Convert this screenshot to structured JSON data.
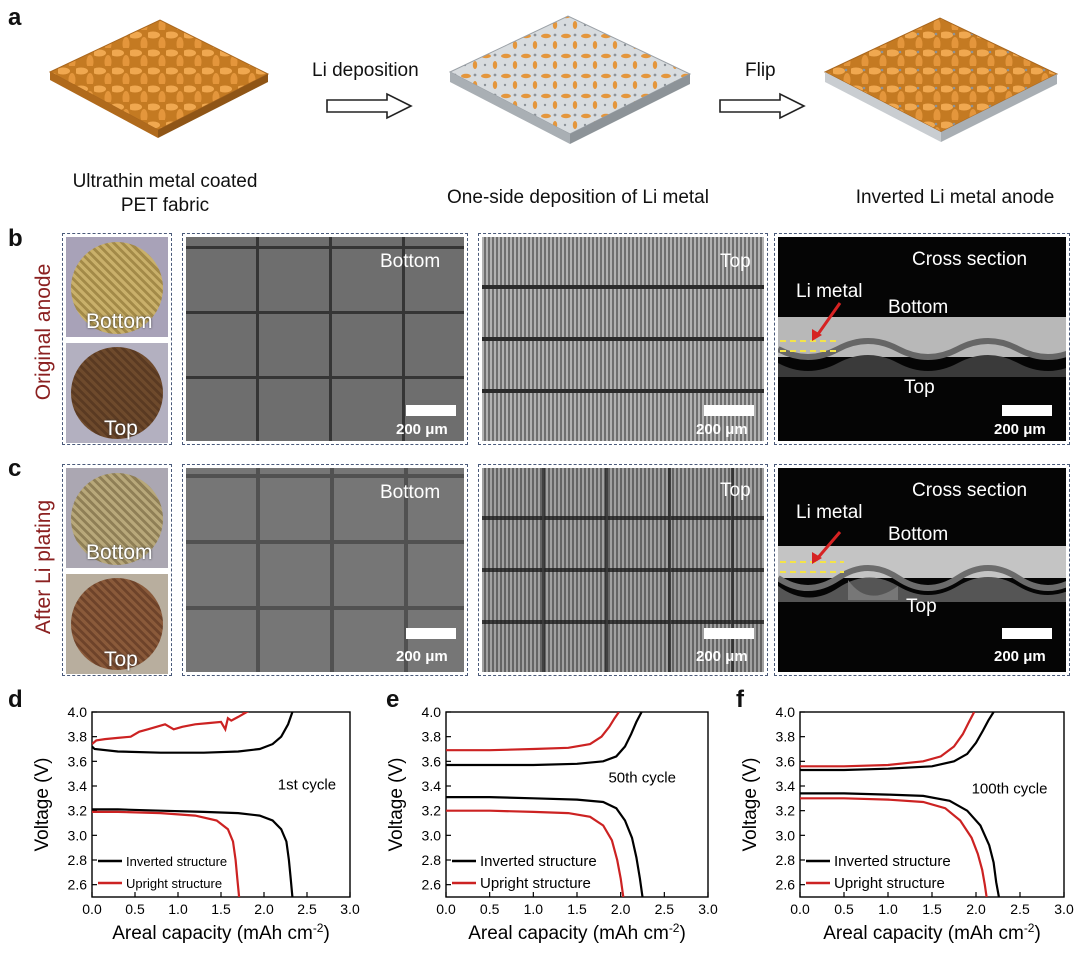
{
  "panels": {
    "a": "a",
    "b": "b",
    "c": "c",
    "d": "d",
    "e": "e",
    "f": "f"
  },
  "panel_a": {
    "step1_caption_line1": "Ultrathin metal coated",
    "step1_caption_line2": "PET fabric",
    "arrow1_label": "Li deposition",
    "step2_caption": "One-side deposition of Li metal",
    "arrow2_label": "Flip",
    "step3_caption": "Inverted Li metal anode"
  },
  "panel_b": {
    "row_label": "Original anode",
    "photo_top_label": "Bottom",
    "photo_bottom_label": "Top",
    "sem1_label": "Bottom",
    "sem2_label": "Top",
    "sem3_label": "Cross section",
    "sem3_li": "Li metal",
    "sem3_bottom": "Bottom",
    "sem3_top": "Top",
    "scale": "200 μm"
  },
  "panel_c": {
    "row_label": "After Li plating",
    "photo_top_label": "Bottom",
    "photo_bottom_label": "Top",
    "sem1_label": "Bottom",
    "sem2_label": "Top",
    "sem3_label": "Cross section",
    "sem3_li": "Li metal",
    "sem3_bottom": "Bottom",
    "sem3_top": "Top",
    "scale": "200 μm"
  },
  "colors": {
    "inverted": "#000000",
    "upright": "#cc2222",
    "fabric": "#e0963a",
    "dark_red": "#8b2020"
  },
  "chart_data": [
    {
      "panel": "d",
      "type": "line",
      "annotation": "1st cycle",
      "xlabel": "Areal capacity (mAh cm",
      "xlabel_sup": "-2",
      "xlabel_end": ")",
      "ylabel": "Voltage (V)",
      "xlim": [
        0,
        3.0
      ],
      "ylim": [
        2.5,
        4.0
      ],
      "xticks": [
        "0.0",
        "0.5",
        "1.0",
        "1.5",
        "2.0",
        "2.5",
        "3.0"
      ],
      "yticks": [
        "2.6",
        "2.8",
        "3.0",
        "3.2",
        "3.4",
        "3.6",
        "3.8",
        "4.0"
      ],
      "legend": [
        "Inverted structure",
        "Upright structure"
      ],
      "series": [
        {
          "name": "Inverted structure",
          "segment": "charge",
          "x": [
            0,
            0.03,
            0.3,
            0.8,
            1.3,
            1.7,
            1.95,
            2.1,
            2.2,
            2.28,
            2.33
          ],
          "y": [
            3.72,
            3.7,
            3.68,
            3.67,
            3.67,
            3.68,
            3.7,
            3.74,
            3.8,
            3.9,
            4.0
          ]
        },
        {
          "name": "Inverted structure",
          "segment": "discharge",
          "x": [
            0,
            0.3,
            0.8,
            1.3,
            1.7,
            1.95,
            2.1,
            2.2,
            2.26,
            2.29,
            2.31,
            2.33
          ],
          "y": [
            3.21,
            3.21,
            3.2,
            3.19,
            3.18,
            3.16,
            3.12,
            3.05,
            2.95,
            2.8,
            2.65,
            2.5
          ]
        },
        {
          "name": "Upright structure",
          "segment": "charge",
          "x": [
            0,
            0.05,
            0.15,
            0.3,
            0.45,
            0.55,
            0.65,
            0.75,
            0.85,
            0.95,
            1.05,
            1.2,
            1.35,
            1.5,
            1.55,
            1.58,
            1.62,
            1.7,
            1.8,
            1.75
          ],
          "y": [
            3.74,
            3.77,
            3.78,
            3.79,
            3.8,
            3.84,
            3.86,
            3.88,
            3.9,
            3.86,
            3.88,
            3.9,
            3.91,
            3.92,
            3.86,
            3.95,
            3.93,
            3.96,
            4.0,
            4.0
          ]
        },
        {
          "name": "Upright structure",
          "segment": "discharge",
          "x": [
            0,
            0.3,
            0.8,
            1.2,
            1.45,
            1.58,
            1.64,
            1.67,
            1.69,
            1.71
          ],
          "y": [
            3.19,
            3.19,
            3.18,
            3.16,
            3.12,
            3.05,
            2.95,
            2.8,
            2.65,
            2.5
          ]
        }
      ]
    },
    {
      "panel": "e",
      "type": "line",
      "annotation": "50th cycle",
      "xlabel": "Areal capacity (mAh cm",
      "xlabel_sup": "-2",
      "xlabel_end": ")",
      "ylabel": "Voltage (V)",
      "xlim": [
        0,
        3.0
      ],
      "ylim": [
        2.5,
        4.0
      ],
      "xticks": [
        "0.0",
        "0.5",
        "1.0",
        "1.5",
        "2.0",
        "2.5",
        "3.0"
      ],
      "yticks": [
        "2.6",
        "2.8",
        "3.0",
        "3.2",
        "3.4",
        "3.6",
        "3.8",
        "4.0"
      ],
      "legend": [
        "Inverted structure",
        "Upright structure"
      ],
      "series": [
        {
          "name": "Inverted structure",
          "segment": "charge",
          "x": [
            0,
            0.5,
            1.0,
            1.5,
            1.8,
            1.95,
            2.05,
            2.12,
            2.18,
            2.24
          ],
          "y": [
            3.57,
            3.57,
            3.57,
            3.58,
            3.6,
            3.64,
            3.72,
            3.82,
            3.92,
            4.0
          ]
        },
        {
          "name": "Inverted structure",
          "segment": "discharge",
          "x": [
            0,
            0.5,
            1.0,
            1.5,
            1.8,
            1.95,
            2.05,
            2.13,
            2.18,
            2.22,
            2.25
          ],
          "y": [
            3.31,
            3.31,
            3.3,
            3.29,
            3.27,
            3.22,
            3.12,
            2.98,
            2.82,
            2.65,
            2.5
          ]
        },
        {
          "name": "Upright structure",
          "segment": "charge",
          "x": [
            0,
            0.5,
            1.0,
            1.4,
            1.65,
            1.78,
            1.87,
            1.93,
            1.98
          ],
          "y": [
            3.69,
            3.69,
            3.7,
            3.71,
            3.74,
            3.8,
            3.88,
            3.95,
            4.0
          ]
        },
        {
          "name": "Upright structure",
          "segment": "discharge",
          "x": [
            0,
            0.5,
            1.0,
            1.4,
            1.65,
            1.8,
            1.9,
            1.96,
            2.0,
            2.03
          ],
          "y": [
            3.2,
            3.2,
            3.19,
            3.18,
            3.15,
            3.08,
            2.96,
            2.8,
            2.65,
            2.5
          ]
        }
      ]
    },
    {
      "panel": "f",
      "type": "line",
      "annotation": "100th cycle",
      "xlabel": "Areal capacity (mAh cm",
      "xlabel_sup": "-2",
      "xlabel_end": ")",
      "ylabel": "Voltage (V)",
      "xlim": [
        0,
        3.0
      ],
      "ylim": [
        2.5,
        4.0
      ],
      "xticks": [
        "0.0",
        "0.5",
        "1.0",
        "1.5",
        "2.0",
        "2.5",
        "3.0"
      ],
      "yticks": [
        "2.6",
        "2.8",
        "3.0",
        "3.2",
        "3.4",
        "3.6",
        "3.8",
        "4.0"
      ],
      "legend": [
        "Inverted structure",
        "Upright structure"
      ],
      "series": [
        {
          "name": "Inverted structure",
          "segment": "charge",
          "x": [
            0,
            0.5,
            1.0,
            1.5,
            1.75,
            1.9,
            2.0,
            2.08,
            2.14,
            2.2
          ],
          "y": [
            3.53,
            3.53,
            3.54,
            3.56,
            3.6,
            3.66,
            3.75,
            3.85,
            3.93,
            4.0
          ]
        },
        {
          "name": "Inverted structure",
          "segment": "discharge",
          "x": [
            0,
            0.5,
            1.0,
            1.4,
            1.7,
            1.9,
            2.05,
            2.15,
            2.2,
            2.23,
            2.26
          ],
          "y": [
            3.34,
            3.34,
            3.33,
            3.32,
            3.28,
            3.2,
            3.08,
            2.92,
            2.78,
            2.62,
            2.5
          ]
        },
        {
          "name": "Upright structure",
          "segment": "charge",
          "x": [
            0,
            0.5,
            1.0,
            1.4,
            1.6,
            1.75,
            1.85,
            1.92,
            1.98
          ],
          "y": [
            3.56,
            3.56,
            3.57,
            3.6,
            3.64,
            3.72,
            3.82,
            3.92,
            4.0
          ]
        },
        {
          "name": "Upright structure",
          "segment": "discharge",
          "x": [
            0,
            0.5,
            1.0,
            1.4,
            1.65,
            1.82,
            1.95,
            2.02,
            2.07,
            2.1,
            2.12
          ],
          "y": [
            3.3,
            3.3,
            3.29,
            3.27,
            3.22,
            3.12,
            2.98,
            2.85,
            2.72,
            2.6,
            2.5
          ]
        }
      ]
    }
  ]
}
